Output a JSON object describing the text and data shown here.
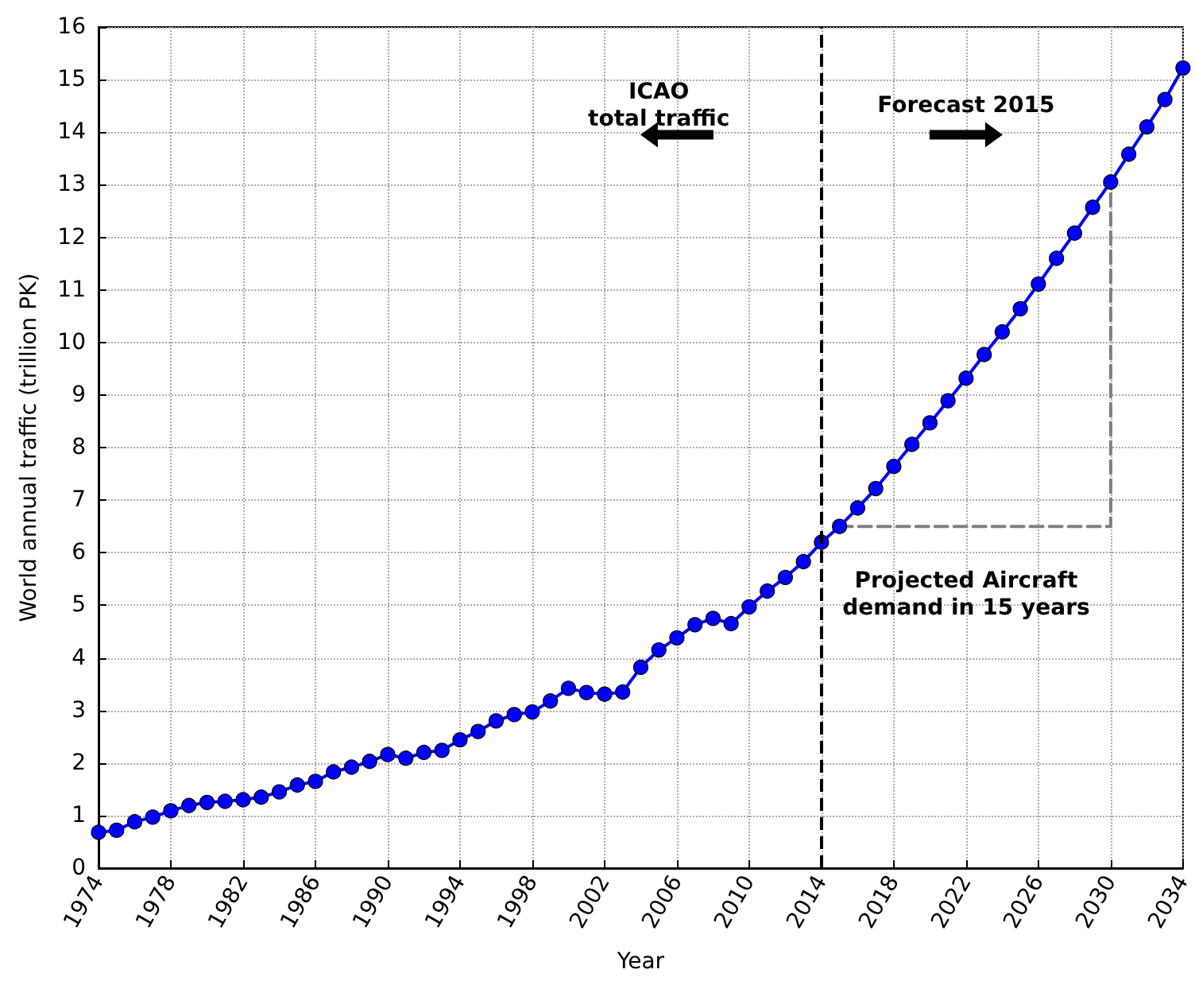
{
  "chart_data": {
    "type": "line",
    "xlabel": "Year",
    "ylabel": "World annual traffic (trillion PK)",
    "xlim": [
      1974,
      2034
    ],
    "xticks": [
      1974,
      1978,
      1982,
      1986,
      1990,
      1994,
      1998,
      2002,
      2006,
      2010,
      2014,
      2018,
      2022,
      2026,
      2030,
      2034
    ],
    "ylim": [
      0,
      16
    ],
    "yticks": [
      0,
      1,
      2,
      3,
      4,
      5,
      6,
      7,
      8,
      9,
      10,
      11,
      12,
      13,
      14,
      15,
      16
    ],
    "grid": true,
    "marker": "circle",
    "line_style": "solid",
    "series": [
      {
        "color": "#0000ff",
        "x": [
          1974,
          1975,
          1976,
          1977,
          1978,
          1979,
          1980,
          1981,
          1982,
          1983,
          1984,
          1985,
          1986,
          1987,
          1988,
          1989,
          1990,
          1991,
          1992,
          1993,
          1994,
          1995,
          1996,
          1997,
          1998,
          1999,
          2000,
          2001,
          2002,
          2003,
          2004,
          2005,
          2006,
          2007,
          2008,
          2009,
          2010,
          2011,
          2012,
          2013,
          2014,
          2015,
          2016,
          2017,
          2018,
          2019,
          2020,
          2021,
          2022,
          2023,
          2024,
          2025,
          2026,
          2027,
          2028,
          2029,
          2030,
          2031,
          2032,
          2033,
          2034
        ],
        "values": [
          0.68,
          0.72,
          0.88,
          0.97,
          1.09,
          1.19,
          1.25,
          1.27,
          1.3,
          1.35,
          1.45,
          1.58,
          1.65,
          1.83,
          1.92,
          2.03,
          2.16,
          2.09,
          2.2,
          2.24,
          2.44,
          2.6,
          2.8,
          2.92,
          2.97,
          3.18,
          3.42,
          3.34,
          3.31,
          3.35,
          3.82,
          4.15,
          4.38,
          4.63,
          4.75,
          4.65,
          4.97,
          5.27,
          5.53,
          5.83,
          6.2,
          6.5,
          6.85,
          7.22,
          7.64,
          8.06,
          8.47,
          8.89,
          9.32,
          9.77,
          10.2,
          10.64,
          11.11,
          11.6,
          12.08,
          12.57,
          13.05,
          13.58,
          14.1,
          14.62,
          15.22
        ]
      },
      {
        "color": "#808080",
        "line_style": "dashed",
        "marker": "none",
        "x": [
          2015,
          2030,
          2030
        ],
        "values": [
          6.5,
          6.5,
          13.05
        ]
      }
    ],
    "ref_lines": [
      {
        "axis": "x",
        "value": 2014,
        "color": "#000000",
        "line_style": "dashed"
      }
    ],
    "annotations": [
      "ICAO\ntotal traffic",
      "Forecast 2015",
      "Projected Aircraft\ndemand in 15 years"
    ]
  }
}
